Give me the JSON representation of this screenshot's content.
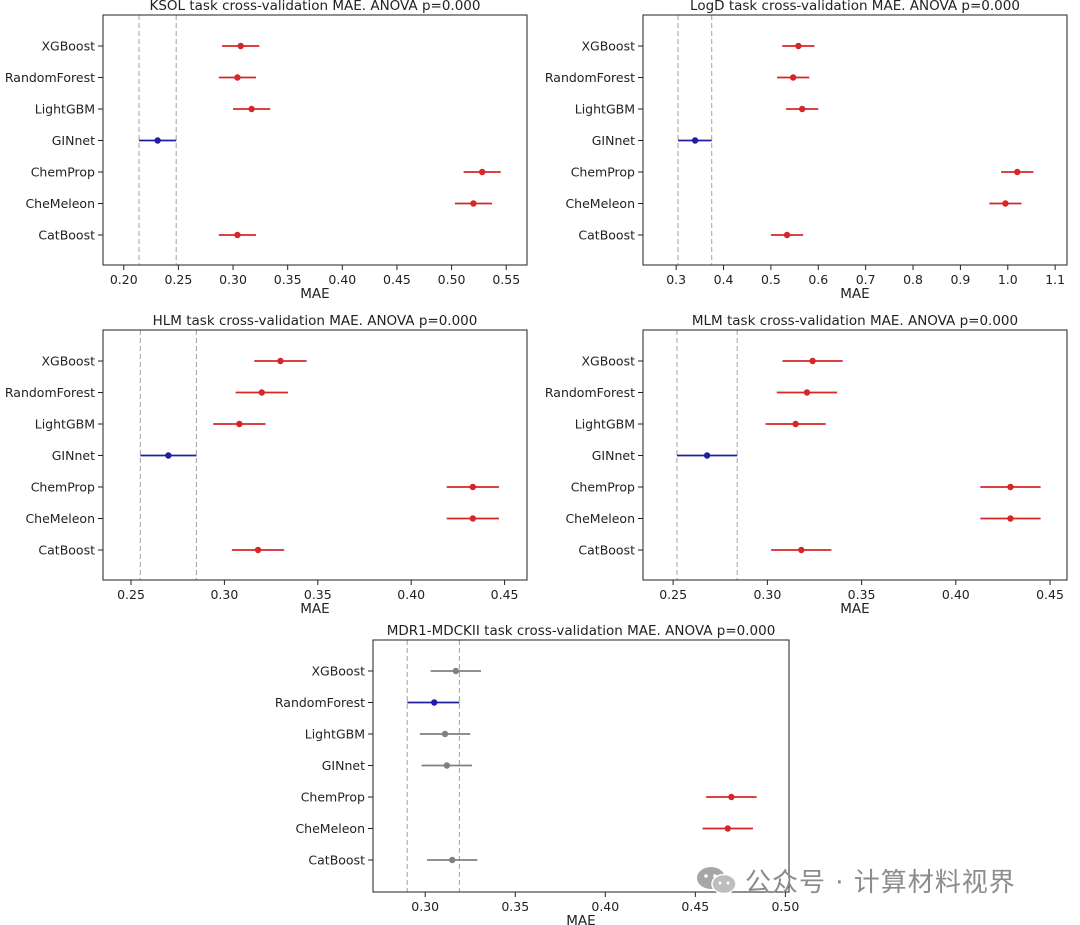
{
  "chart_data": [
    {
      "type": "forest",
      "title": "KSOL task cross-validation MAE. ANOVA p=0.000",
      "xlabel": "MAE",
      "xlim": [
        0.181,
        0.569
      ],
      "xticks": [
        0.2,
        0.25,
        0.3,
        0.35,
        0.4,
        0.45,
        0.5,
        0.55
      ],
      "xtick_labels": [
        "0.20",
        "0.25",
        "0.30",
        "0.35",
        "0.40",
        "0.45",
        "0.50",
        "0.55"
      ],
      "reference_lines": [
        0.214,
        0.248
      ],
      "items": [
        {
          "label": "XGBoost",
          "mean": 0.307,
          "low": 0.29,
          "high": 0.324,
          "color": "#d62728"
        },
        {
          "label": "RandomForest",
          "mean": 0.304,
          "low": 0.287,
          "high": 0.321,
          "color": "#d62728"
        },
        {
          "label": "LightGBM",
          "mean": 0.317,
          "low": 0.3,
          "high": 0.334,
          "color": "#d62728"
        },
        {
          "label": "GINnet",
          "mean": 0.231,
          "low": 0.214,
          "high": 0.248,
          "color": "#1f1fa0"
        },
        {
          "label": "ChemProp",
          "mean": 0.528,
          "low": 0.511,
          "high": 0.545,
          "color": "#d62728"
        },
        {
          "label": "CheMeleon",
          "mean": 0.52,
          "low": 0.503,
          "high": 0.537,
          "color": "#d62728"
        },
        {
          "label": "CatBoost",
          "mean": 0.304,
          "low": 0.287,
          "high": 0.321,
          "color": "#d62728"
        }
      ]
    },
    {
      "type": "forest",
      "title": "LogD task cross-validation MAE. ANOVA p=0.000",
      "xlabel": "MAE",
      "xlim": [
        0.23,
        1.125
      ],
      "xticks": [
        0.3,
        0.4,
        0.5,
        0.6,
        0.7,
        0.8,
        0.9,
        1.0,
        1.1
      ],
      "xtick_labels": [
        "0.3",
        "0.4",
        "0.5",
        "0.6",
        "0.7",
        "0.8",
        "0.9",
        "1.0",
        "1.1"
      ],
      "reference_lines": [
        0.304,
        0.375
      ],
      "items": [
        {
          "label": "XGBoost",
          "mean": 0.558,
          "low": 0.524,
          "high": 0.592,
          "color": "#d62728"
        },
        {
          "label": "RandomForest",
          "mean": 0.547,
          "low": 0.513,
          "high": 0.581,
          "color": "#d62728"
        },
        {
          "label": "LightGBM",
          "mean": 0.566,
          "low": 0.532,
          "high": 0.6,
          "color": "#d62728"
        },
        {
          "label": "GINnet",
          "mean": 0.34,
          "low": 0.304,
          "high": 0.375,
          "color": "#1f1fa0"
        },
        {
          "label": "ChemProp",
          "mean": 1.02,
          "low": 0.986,
          "high": 1.054,
          "color": "#d62728"
        },
        {
          "label": "CheMeleon",
          "mean": 0.995,
          "low": 0.961,
          "high": 1.029,
          "color": "#d62728"
        },
        {
          "label": "CatBoost",
          "mean": 0.534,
          "low": 0.5,
          "high": 0.568,
          "color": "#d62728"
        }
      ]
    },
    {
      "type": "forest",
      "title": "HLM task cross-validation MAE. ANOVA p=0.000",
      "xlabel": "MAE",
      "xlim": [
        0.235,
        0.462
      ],
      "xticks": [
        0.25,
        0.3,
        0.35,
        0.4,
        0.45
      ],
      "xtick_labels": [
        "0.25",
        "0.30",
        "0.35",
        "0.40",
        "0.45"
      ],
      "reference_lines": [
        0.255,
        0.285
      ],
      "items": [
        {
          "label": "XGBoost",
          "mean": 0.33,
          "low": 0.316,
          "high": 0.344,
          "color": "#d62728"
        },
        {
          "label": "RandomForest",
          "mean": 0.32,
          "low": 0.306,
          "high": 0.334,
          "color": "#d62728"
        },
        {
          "label": "LightGBM",
          "mean": 0.308,
          "low": 0.294,
          "high": 0.322,
          "color": "#d62728"
        },
        {
          "label": "GINnet",
          "mean": 0.27,
          "low": 0.255,
          "high": 0.285,
          "color": "#1f1fa0"
        },
        {
          "label": "ChemProp",
          "mean": 0.433,
          "low": 0.419,
          "high": 0.447,
          "color": "#d62728"
        },
        {
          "label": "CheMeleon",
          "mean": 0.433,
          "low": 0.419,
          "high": 0.447,
          "color": "#d62728"
        },
        {
          "label": "CatBoost",
          "mean": 0.318,
          "low": 0.304,
          "high": 0.332,
          "color": "#d62728"
        }
      ]
    },
    {
      "type": "forest",
      "title": "MLM task cross-validation MAE. ANOVA p=0.000",
      "xlabel": "MAE",
      "xlim": [
        0.234,
        0.459
      ],
      "xticks": [
        0.25,
        0.3,
        0.35,
        0.4,
        0.45
      ],
      "xtick_labels": [
        "0.25",
        "0.30",
        "0.35",
        "0.40",
        "0.45"
      ],
      "reference_lines": [
        0.252,
        0.284
      ],
      "items": [
        {
          "label": "XGBoost",
          "mean": 0.324,
          "low": 0.308,
          "high": 0.34,
          "color": "#d62728"
        },
        {
          "label": "RandomForest",
          "mean": 0.321,
          "low": 0.305,
          "high": 0.337,
          "color": "#d62728"
        },
        {
          "label": "LightGBM",
          "mean": 0.315,
          "low": 0.299,
          "high": 0.331,
          "color": "#d62728"
        },
        {
          "label": "GINnet",
          "mean": 0.268,
          "low": 0.252,
          "high": 0.284,
          "color": "#1f1fa0"
        },
        {
          "label": "ChemProp",
          "mean": 0.429,
          "low": 0.413,
          "high": 0.445,
          "color": "#d62728"
        },
        {
          "label": "CheMeleon",
          "mean": 0.429,
          "low": 0.413,
          "high": 0.445,
          "color": "#d62728"
        },
        {
          "label": "CatBoost",
          "mean": 0.318,
          "low": 0.302,
          "high": 0.334,
          "color": "#d62728"
        }
      ]
    },
    {
      "type": "forest",
      "title": "MDR1-MDCKII task cross-validation MAE. ANOVA p=0.000",
      "xlabel": "MAE",
      "xlim": [
        0.271,
        0.502
      ],
      "xticks": [
        0.3,
        0.35,
        0.4,
        0.45,
        0.5
      ],
      "xtick_labels": [
        "0.30",
        "0.35",
        "0.40",
        "0.45",
        "0.50"
      ],
      "reference_lines": [
        0.29,
        0.319
      ],
      "items": [
        {
          "label": "XGBoost",
          "mean": 0.317,
          "low": 0.303,
          "high": 0.331,
          "color": "#808080"
        },
        {
          "label": "RandomForest",
          "mean": 0.305,
          "low": 0.29,
          "high": 0.319,
          "color": "#1f1fa0"
        },
        {
          "label": "LightGBM",
          "mean": 0.311,
          "low": 0.297,
          "high": 0.325,
          "color": "#808080"
        },
        {
          "label": "GINnet",
          "mean": 0.312,
          "low": 0.298,
          "high": 0.326,
          "color": "#808080"
        },
        {
          "label": "ChemProp",
          "mean": 0.47,
          "low": 0.456,
          "high": 0.484,
          "color": "#d62728"
        },
        {
          "label": "CheMeleon",
          "mean": 0.468,
          "low": 0.454,
          "high": 0.482,
          "color": "#d62728"
        },
        {
          "label": "CatBoost",
          "mean": 0.315,
          "low": 0.301,
          "high": 0.329,
          "color": "#808080"
        }
      ]
    }
  ],
  "watermark": {
    "text": "公众号 · 计算材料视界",
    "icon": "wechat-icon"
  }
}
